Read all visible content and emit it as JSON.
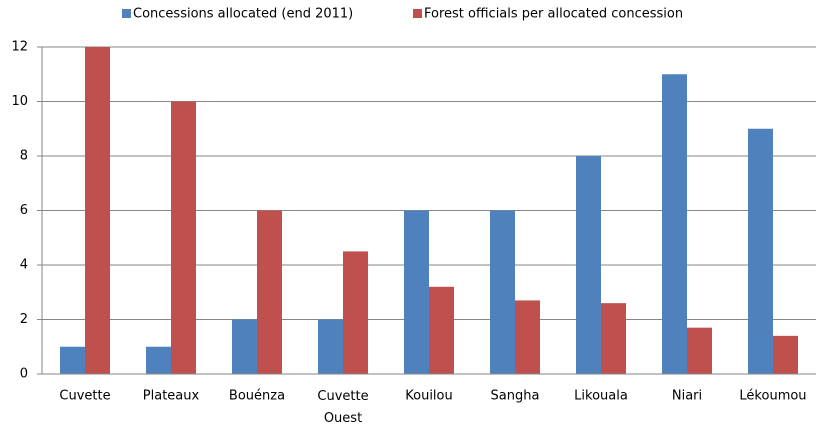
{
  "chart_data": {
    "type": "bar",
    "categories": [
      "Cuvette",
      "Plateaux",
      "Bouénza",
      "Cuvette Ouest",
      "Kouilou",
      "Sangha",
      "Likouala",
      "Niari",
      "Lékoumou"
    ],
    "series": [
      {
        "name": "Concessions allocated (end 2011)",
        "color": "#4f81bd",
        "values": [
          1,
          1,
          2,
          2,
          6,
          6,
          8,
          11,
          9
        ]
      },
      {
        "name": "Forest officials per allocated concession",
        "color": "#c0504d",
        "values": [
          12,
          10,
          6,
          4.5,
          3.2,
          2.7,
          2.6,
          1.7,
          1.4
        ]
      }
    ],
    "ylim": [
      0,
      12
    ],
    "yticks": [
      0,
      2,
      4,
      6,
      8,
      10,
      12
    ],
    "grid": true,
    "legend": "top"
  }
}
